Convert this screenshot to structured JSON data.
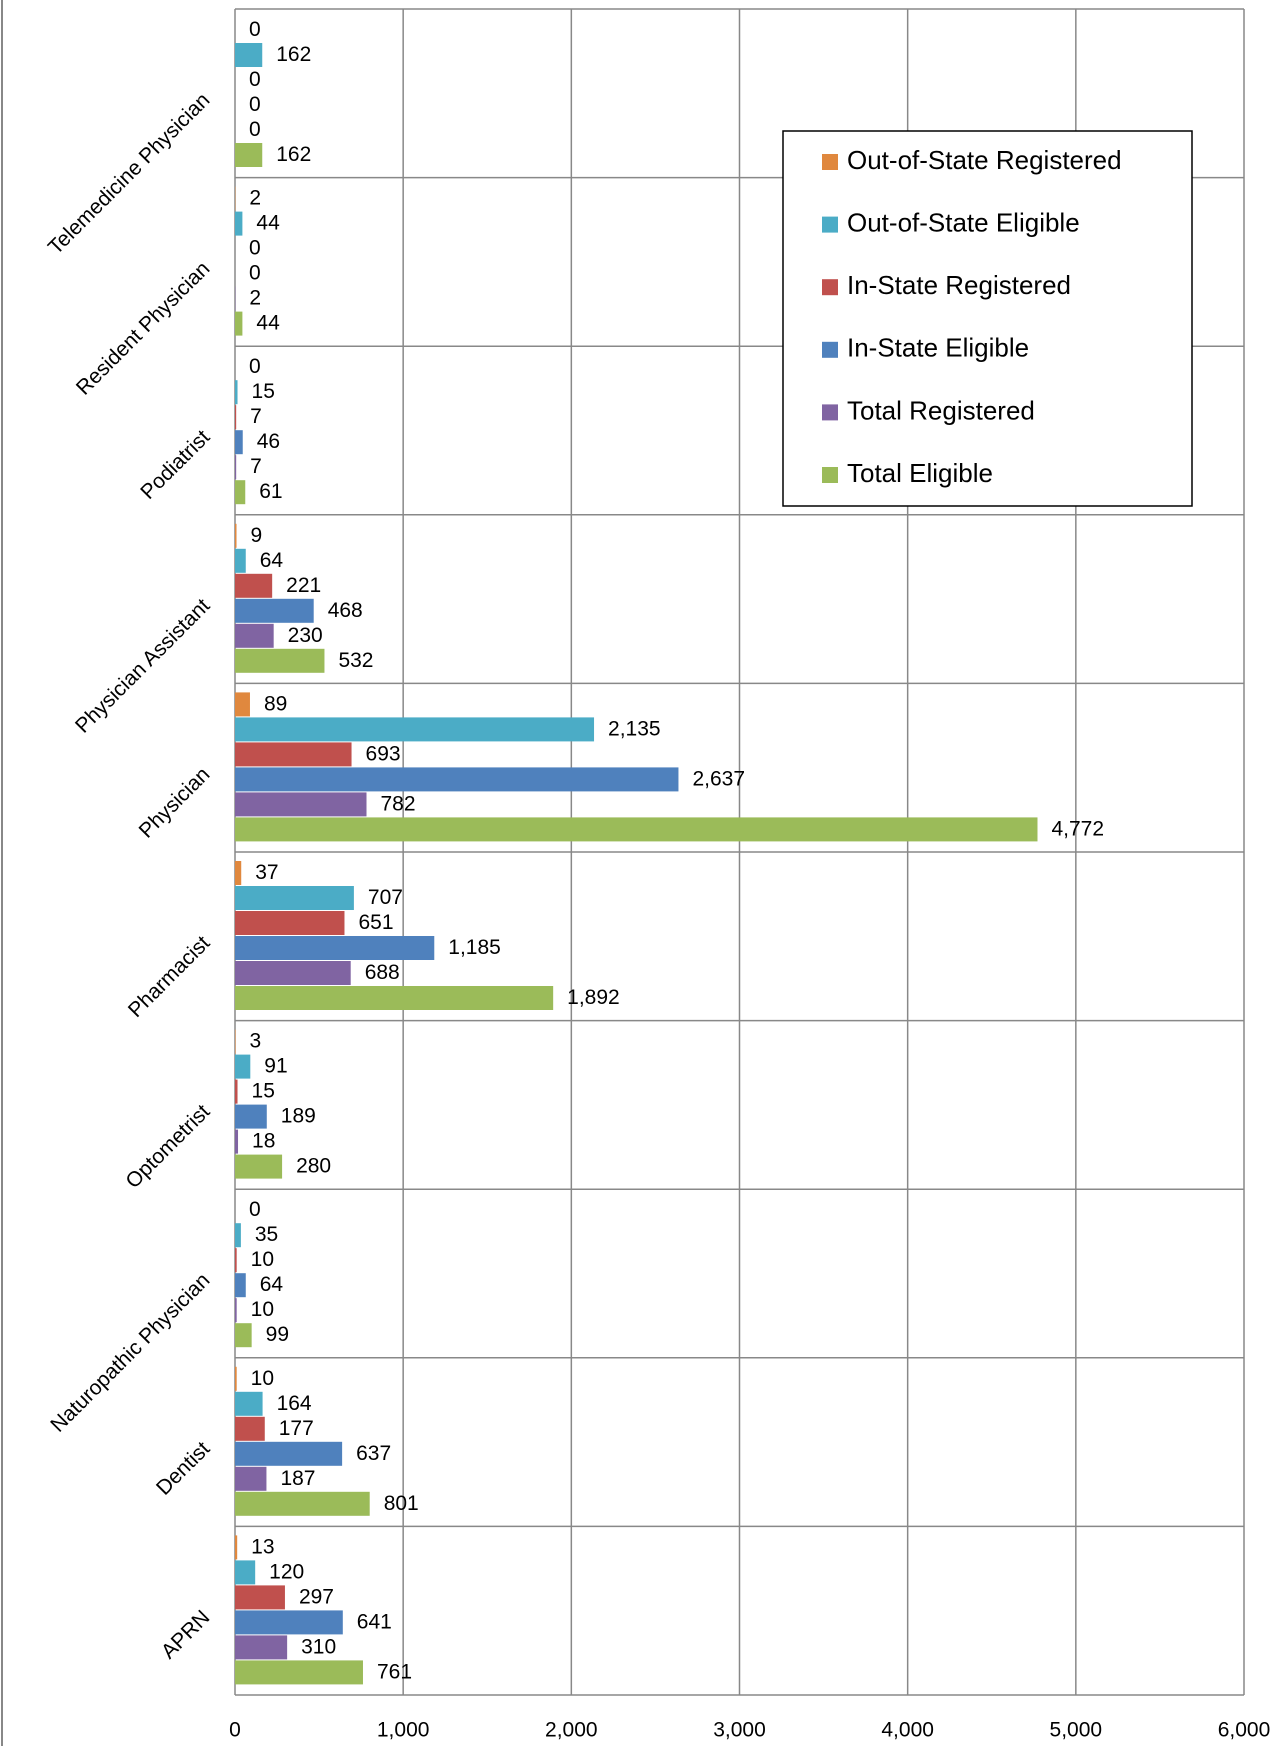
{
  "chart_data": {
    "type": "hbar",
    "categories": [
      "Telemedicine Physician",
      "Resident Physician",
      "Podiatrist",
      "Physician Assistant",
      "Physician",
      "Pharmacist",
      "Optometrist",
      "Naturopathic Physician",
      "Dentist",
      "APRN"
    ],
    "series": [
      {
        "name": "Out-of-State Registered",
        "color": "#e0883e",
        "values": [
          0,
          2,
          0,
          9,
          89,
          37,
          3,
          0,
          10,
          13
        ]
      },
      {
        "name": "Out-of-State Eligible",
        "color": "#4bacc6",
        "values": [
          162,
          44,
          15,
          64,
          2135,
          707,
          91,
          35,
          164,
          120
        ],
        "value_labels": [
          "162",
          "44",
          "15",
          "64",
          "2,135",
          "707",
          "91",
          "35",
          "164",
          "120"
        ]
      },
      {
        "name": "In-State Registered",
        "color": "#c0504d",
        "values": [
          0,
          0,
          7,
          221,
          693,
          651,
          15,
          10,
          177,
          297
        ]
      },
      {
        "name": "In-State Eligible",
        "color": "#4f81bd",
        "values": [
          0,
          0,
          46,
          468,
          2637,
          1185,
          189,
          64,
          637,
          641
        ],
        "value_labels": [
          "0",
          "0",
          "46",
          "468",
          "2,637",
          "1,185",
          "189",
          "64",
          "637",
          "641"
        ]
      },
      {
        "name": "Total Registered",
        "color": "#8064a2",
        "values": [
          0,
          2,
          7,
          230,
          782,
          688,
          18,
          10,
          187,
          310
        ]
      },
      {
        "name": "Total Eligible",
        "color": "#9bbb59",
        "values": [
          162,
          44,
          61,
          532,
          4772,
          1892,
          280,
          99,
          801,
          761
        ],
        "value_labels": [
          "162",
          "44",
          "61",
          "532",
          "4,772",
          "1,892",
          "280",
          "99",
          "801",
          "761"
        ]
      }
    ],
    "xlim": [
      0,
      6000
    ],
    "xticks": [
      0,
      {
        "value": 1000,
        "label": "1,000"
      },
      {
        "value": 2000,
        "label": "2,000"
      },
      {
        "value": 3000,
        "label": "3,000"
      },
      {
        "value": 4000,
        "label": "4,000"
      },
      {
        "value": 5000,
        "label": "5,000"
      },
      {
        "value": 6000,
        "label": "6,000"
      }
    ],
    "grid": true,
    "legend": "upper right"
  }
}
